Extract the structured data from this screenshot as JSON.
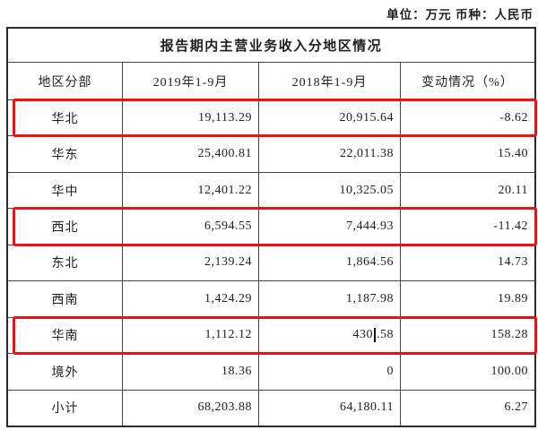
{
  "meta": {
    "unit_label": "单位：万元 币种：人民币"
  },
  "table": {
    "title": "报告期内主营业务收入分地区情况",
    "columns": [
      "地区分部",
      "2019年1-9月",
      "2018年1-9月",
      "变动情况（%）"
    ],
    "rows": [
      {
        "region": "华北",
        "y2019": "19,113.29",
        "y2018": "20,915.64",
        "change": "-8.62",
        "highlighted": true
      },
      {
        "region": "华东",
        "y2019": "25,400.81",
        "y2018": "22,011.38",
        "change": "15.40",
        "highlighted": false
      },
      {
        "region": "华中",
        "y2019": "12,401.22",
        "y2018": "10,325.05",
        "change": "20.11",
        "highlighted": false
      },
      {
        "region": "西北",
        "y2019": "6,594.55",
        "y2018": "7,444.93",
        "change": "-11.42",
        "highlighted": true
      },
      {
        "region": "东北",
        "y2019": "2,139.24",
        "y2018": "1,864.56",
        "change": "14.73",
        "highlighted": false
      },
      {
        "region": "西南",
        "y2019": "1,424.29",
        "y2018": "1,187.98",
        "change": "19.89",
        "highlighted": false
      },
      {
        "region": "华南",
        "y2019": "1,112.12",
        "y2018": "430.58",
        "change": "158.28",
        "highlighted": true
      },
      {
        "region": "境外",
        "y2019": "18.36",
        "y2018": "0",
        "change": "100.00",
        "highlighted": false
      },
      {
        "region": "小计",
        "y2019": "68,203.88",
        "y2018": "64,180.11",
        "change": "6.27",
        "highlighted": false
      }
    ],
    "cursor_artifact": {
      "row_index": 6,
      "field": "y2018",
      "split_at": 3
    }
  },
  "colors": {
    "highlight_border": "#ee1111",
    "grid_line": "#454545",
    "text": "#1f1f1f"
  }
}
